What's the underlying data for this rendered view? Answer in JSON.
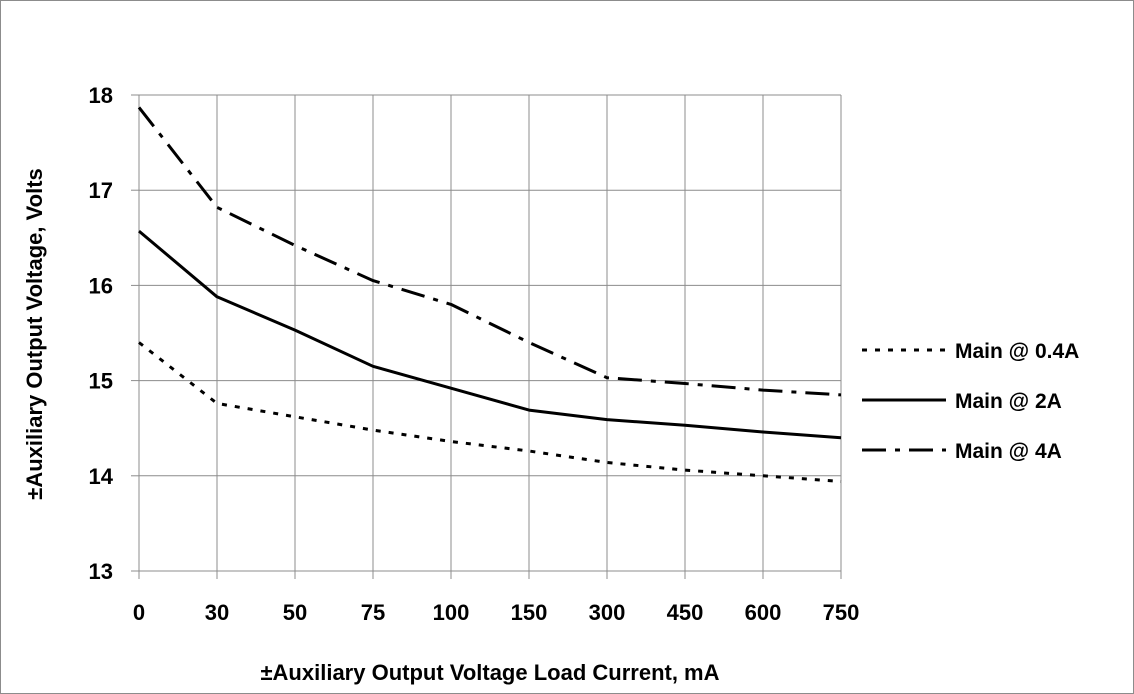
{
  "chart_data": {
    "type": "line",
    "title": "",
    "xlabel": "±Auxiliary Output Voltage Load Current, mA",
    "ylabel": "±Auxiliary Output Voltage, Volts",
    "categories": [
      "0",
      "30",
      "50",
      "75",
      "100",
      "150",
      "300",
      "450",
      "600",
      "750"
    ],
    "ylim": [
      13,
      18
    ],
    "yticks": [
      "13",
      "14",
      "15",
      "16",
      "17",
      "18"
    ],
    "grid": true,
    "legend_position": "right",
    "series": [
      {
        "name": "Main @ 0.4A",
        "dash": "dotted",
        "values": [
          15.4,
          14.76,
          14.62,
          14.48,
          14.36,
          14.26,
          14.14,
          14.06,
          14.0,
          13.94
        ]
      },
      {
        "name": "Main @ 2A",
        "dash": "solid",
        "values": [
          16.57,
          15.88,
          15.53,
          15.15,
          14.92,
          14.69,
          14.59,
          14.53,
          14.46,
          14.4
        ]
      },
      {
        "name": "Main @ 4A",
        "dash": "dash-dot",
        "values": [
          17.87,
          16.82,
          16.42,
          16.05,
          15.8,
          15.4,
          15.03,
          14.97,
          14.9,
          14.85
        ]
      }
    ]
  }
}
